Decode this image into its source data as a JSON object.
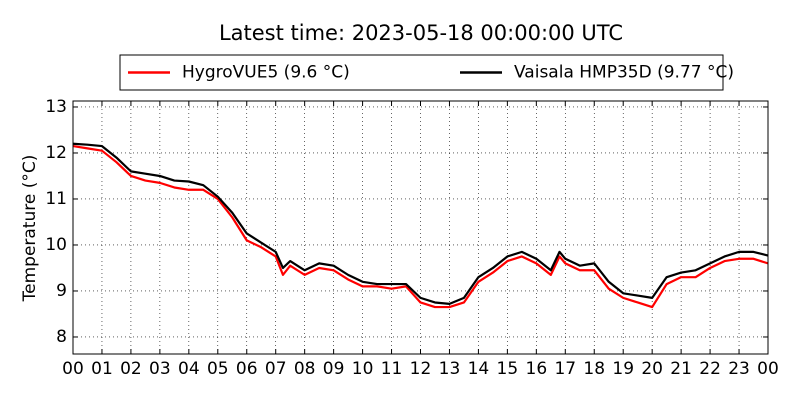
{
  "chart_data": {
    "type": "line",
    "title": "Latest time: 2023-05-18 00:00:00 UTC",
    "y_label": "Temperature (°C)",
    "x": [
      0,
      0.5,
      1,
      1.5,
      2,
      2.5,
      3,
      3.5,
      4,
      4.5,
      5,
      5.5,
      6,
      6.5,
      7,
      7.25,
      7.5,
      8,
      8.5,
      9,
      9.5,
      10,
      10.5,
      11,
      11.5,
      12,
      12.5,
      13,
      13.5,
      14,
      14.5,
      15,
      15.5,
      16,
      16.5,
      16.8,
      17,
      17.5,
      18,
      18.5,
      19,
      19.5,
      20,
      20.5,
      21,
      21.5,
      22,
      22.5,
      23,
      23.5,
      24
    ],
    "series": [
      {
        "name": "HygroVUE5 (9.6 °C)",
        "color": "#ff0000",
        "values": [
          12.15,
          12.1,
          12.05,
          11.8,
          11.5,
          11.4,
          11.35,
          11.25,
          11.2,
          11.2,
          11.0,
          10.6,
          10.1,
          9.95,
          9.75,
          9.35,
          9.55,
          9.35,
          9.5,
          9.45,
          9.25,
          9.1,
          9.1,
          9.05,
          9.1,
          8.75,
          8.65,
          8.65,
          8.75,
          9.2,
          9.4,
          9.65,
          9.75,
          9.6,
          9.35,
          9.75,
          9.6,
          9.45,
          9.45,
          9.05,
          8.85,
          8.75,
          8.65,
          9.15,
          9.3,
          9.3,
          9.5,
          9.65,
          9.7,
          9.7,
          9.6
        ]
      },
      {
        "name": "Vaisala HMP35D (9.77 °C)",
        "color": "#000000",
        "values": [
          12.2,
          12.18,
          12.15,
          11.9,
          11.6,
          11.55,
          11.5,
          11.4,
          11.38,
          11.3,
          11.05,
          10.7,
          10.25,
          10.05,
          9.85,
          9.5,
          9.65,
          9.45,
          9.6,
          9.55,
          9.35,
          9.2,
          9.15,
          9.15,
          9.15,
          8.85,
          8.75,
          8.72,
          8.85,
          9.3,
          9.5,
          9.75,
          9.85,
          9.7,
          9.45,
          9.85,
          9.7,
          9.55,
          9.6,
          9.2,
          8.95,
          8.9,
          8.85,
          9.3,
          9.4,
          9.45,
          9.6,
          9.75,
          9.85,
          9.85,
          9.77
        ]
      }
    ],
    "xlim": [
      0,
      24
    ],
    "xticks": [
      {
        "value": 0,
        "label": "00"
      },
      {
        "value": 1,
        "label": "01"
      },
      {
        "value": 2,
        "label": "02"
      },
      {
        "value": 3,
        "label": "03"
      },
      {
        "value": 4,
        "label": "04"
      },
      {
        "value": 5,
        "label": "05"
      },
      {
        "value": 6,
        "label": "06"
      },
      {
        "value": 7,
        "label": "07"
      },
      {
        "value": 8,
        "label": "08"
      },
      {
        "value": 9,
        "label": "09"
      },
      {
        "value": 10,
        "label": "10"
      },
      {
        "value": 11,
        "label": "11"
      },
      {
        "value": 12,
        "label": "12"
      },
      {
        "value": 13,
        "label": "13"
      },
      {
        "value": 14,
        "label": "14"
      },
      {
        "value": 15,
        "label": "15"
      },
      {
        "value": 16,
        "label": "16"
      },
      {
        "value": 17,
        "label": "17"
      },
      {
        "value": 18,
        "label": "18"
      },
      {
        "value": 19,
        "label": "19"
      },
      {
        "value": 20,
        "label": "20"
      },
      {
        "value": 21,
        "label": "21"
      },
      {
        "value": 22,
        "label": "22"
      },
      {
        "value": 23,
        "label": "23"
      },
      {
        "value": 24,
        "label": "00"
      }
    ],
    "ylim": [
      7.63,
      13.13
    ],
    "yticks": [
      8,
      9,
      10,
      11,
      12,
      13
    ],
    "grid": true,
    "legend": "top"
  }
}
